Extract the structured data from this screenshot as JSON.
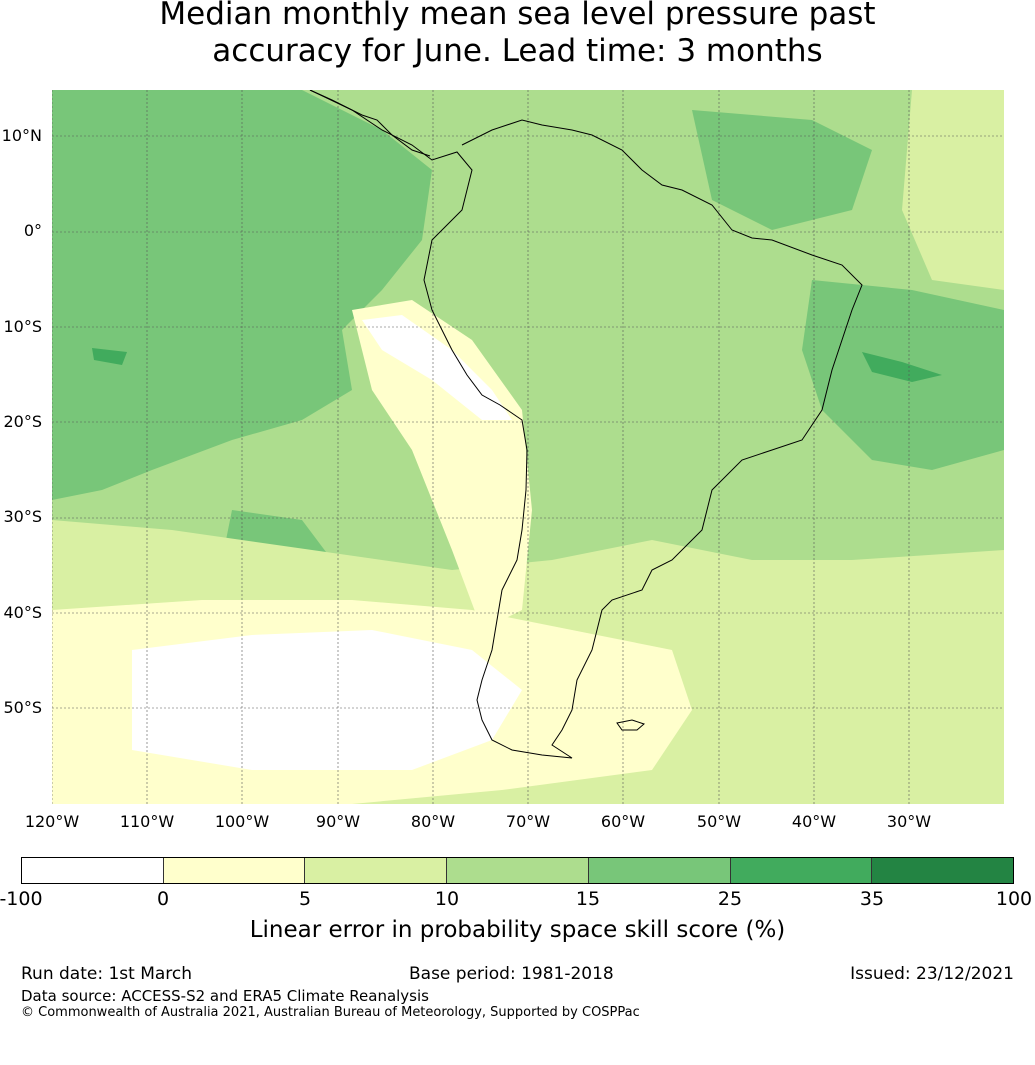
{
  "title": {
    "line1": "Median monthly mean sea level pressure past",
    "line2": "accuracy for June. Lead time: 3 months"
  },
  "map": {
    "region": "South America and surrounding oceans",
    "lat_labels": [
      "10°N",
      "0°",
      "10°S",
      "20°S",
      "30°S",
      "40°S",
      "50°S"
    ],
    "lon_labels": [
      "120°W",
      "110°W",
      "100°W",
      "90°W",
      "80°W",
      "70°W",
      "60°W",
      "50°W",
      "40°W",
      "30°W"
    ]
  },
  "colorbar": {
    "ticks": [
      "-100",
      "0",
      "5",
      "10",
      "15",
      "25",
      "35",
      "100"
    ],
    "colors": [
      "#ffffff",
      "#ffffcc",
      "#d9f0a3",
      "#addd8e",
      "#78c679",
      "#41ab5d",
      "#238443"
    ],
    "label": "Linear error in probability space skill score (%)"
  },
  "footer": {
    "run_date": "Run date: 1st March",
    "base_period": "Base period: 1981-2018",
    "issued": "Issued: 23/12/2021",
    "data_source": "Data source: ACCESS-S2 and ERA5 Climate Reanalysis",
    "copyright": "© Commonwealth of Australia 2021, Australian Bureau of Meteorology, Supported by COSPPac"
  }
}
